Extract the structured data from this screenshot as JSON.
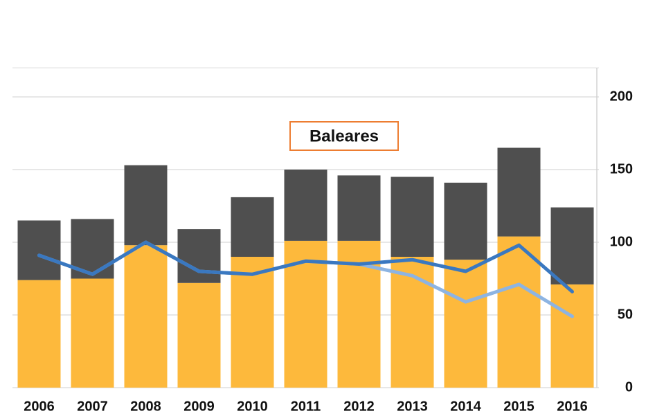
{
  "chart_data": {
    "type": "bar",
    "title": "Baleares",
    "categories": [
      "2006",
      "2007",
      "2008",
      "2009",
      "2010",
      "2011",
      "2012",
      "2013",
      "2014",
      "2015",
      "2016"
    ],
    "series": [
      {
        "color": "#fdb93c",
        "values": [
          74,
          75,
          98,
          72,
          90,
          101,
          101,
          90,
          88,
          104,
          71
        ]
      },
      {
        "color": "#4f4f4f",
        "values": [
          41,
          41,
          55,
          37,
          41,
          49,
          45,
          55,
          53,
          61,
          53
        ]
      }
    ],
    "lines": [
      {
        "color": "#8db4e2",
        "values": [
          91,
          78,
          100,
          80,
          78,
          87,
          85,
          77,
          59,
          71,
          49
        ]
      },
      {
        "color": "#3a78c0",
        "values": [
          91,
          78,
          100,
          80,
          78,
          87,
          85,
          88,
          80,
          98,
          66
        ]
      }
    ],
    "ylim": [
      0,
      220
    ],
    "yticks": [
      0,
      50,
      100,
      150,
      200
    ],
    "grid": true,
    "stacked": true
  }
}
